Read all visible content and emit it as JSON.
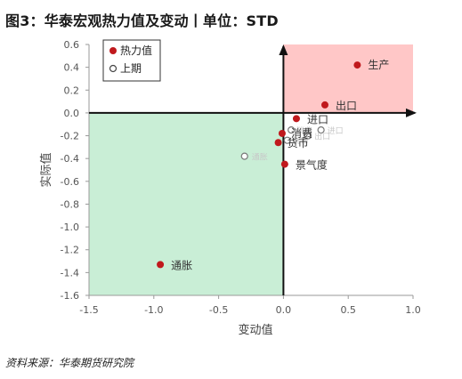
{
  "title": "图3：华泰宏观热力值及变动丨单位：STD",
  "source": "资料来源：华泰期货研究院",
  "chart_data": {
    "type": "scatter",
    "xlabel": "变动值",
    "ylabel": "实际值",
    "xlim": [
      -1.5,
      1.0
    ],
    "ylim": [
      -1.6,
      0.6
    ],
    "x_ticks": [
      "-1.5",
      "-1.0",
      "-0.5",
      "0.0",
      "0.5",
      "1.0"
    ],
    "y_ticks": [
      "0.6",
      "0.4",
      "0.2",
      "0.0",
      "-0.2",
      "-0.4",
      "-0.6",
      "-0.8",
      "-1.0",
      "-1.2",
      "-1.4",
      "-1.6"
    ],
    "quadrant_colors": {
      "upper_right": "#ffc7c7",
      "lower_left": "#c9eed6"
    },
    "legend": {
      "placement": "top-left",
      "entries": [
        {
          "label": "热力值",
          "marker": "filled"
        },
        {
          "label": "上期",
          "marker": "hollow"
        }
      ]
    },
    "series": [
      {
        "name": "热力值",
        "color": "#c0191d",
        "points": [
          {
            "label": "生产",
            "x": 0.57,
            "y": 0.42
          },
          {
            "label": "出口",
            "x": 0.32,
            "y": 0.07
          },
          {
            "label": "进口",
            "x": 0.1,
            "y": -0.05
          },
          {
            "label": "消费",
            "x": -0.01,
            "y": -0.18
          },
          {
            "label": "货币",
            "x": -0.04,
            "y": -0.26
          },
          {
            "label": "景气度",
            "x": 0.01,
            "y": -0.45
          },
          {
            "label": "通胀",
            "x": -0.95,
            "y": -1.33
          }
        ]
      },
      {
        "name": "上期",
        "color": "#777777",
        "points": [
          {
            "label": "通胀",
            "x": -0.3,
            "y": -0.38
          },
          {
            "label": "进口",
            "x": 0.29,
            "y": -0.15
          },
          {
            "label": "消费",
            "x": 0.06,
            "y": -0.15
          },
          {
            "label": "出口",
            "x": 0.19,
            "y": -0.2
          },
          {
            "label": "货币",
            "x": 0.03,
            "y": -0.24
          }
        ]
      }
    ]
  }
}
